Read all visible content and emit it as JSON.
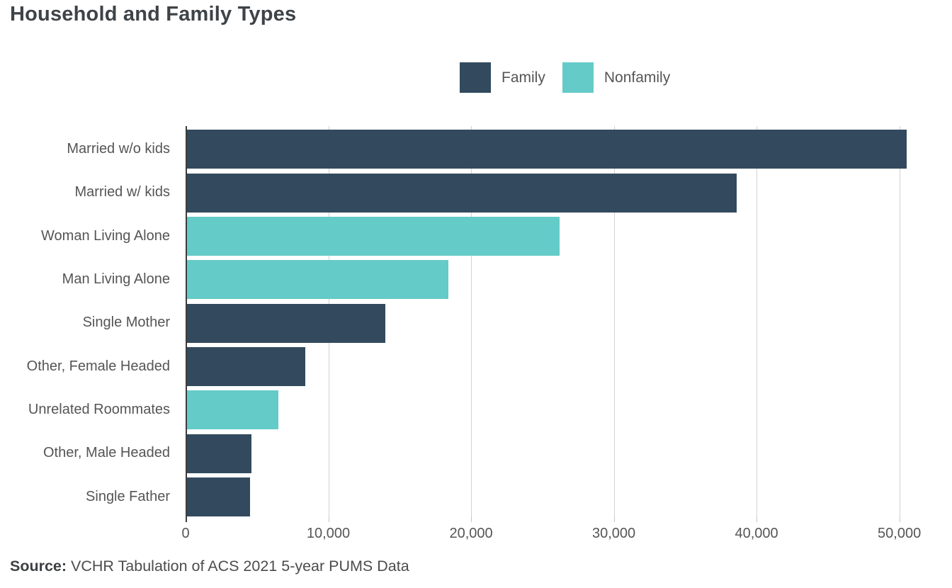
{
  "title": "Household and Family Types",
  "legend": {
    "items": [
      {
        "label": "Family",
        "color": "#334a5e"
      },
      {
        "label": "Nonfamily",
        "color": "#64cbc8"
      }
    ]
  },
  "source": {
    "prefix": "Source:",
    "text": " VCHR Tabulation of ACS 2021 5-year PUMS Data"
  },
  "chart_data": {
    "type": "bar",
    "orientation": "horizontal",
    "title": "Household and Family Types",
    "categories": [
      "Married w/o kids",
      "Married w/ kids",
      "Woman Living Alone",
      "Man Living Alone",
      "Single Mother",
      "Other, Female Headed",
      "Unrelated Roommates",
      "Other, Male Headed",
      "Single Father"
    ],
    "rows": [
      {
        "label": "Married w/o kids",
        "value": 50400,
        "series": "Family"
      },
      {
        "label": "Married w/ kids",
        "value": 38500,
        "series": "Family"
      },
      {
        "label": "Woman Living Alone",
        "value": 26100,
        "series": "Nonfamily"
      },
      {
        "label": "Man Living Alone",
        "value": 18300,
        "series": "Nonfamily"
      },
      {
        "label": "Single Mother",
        "value": 13900,
        "series": "Family"
      },
      {
        "label": "Other, Female Headed",
        "value": 8300,
        "series": "Family"
      },
      {
        "label": "Unrelated Roommates",
        "value": 6400,
        "series": "Nonfamily"
      },
      {
        "label": "Other, Male Headed",
        "value": 4500,
        "series": "Family"
      },
      {
        "label": "Single Father",
        "value": 4400,
        "series": "Family"
      }
    ],
    "series_colors": {
      "Family": "#334a5e",
      "Nonfamily": "#64cbc8"
    },
    "legend_entries": [
      "Family",
      "Nonfamily"
    ],
    "legend_position": "top-right",
    "grid": true,
    "xlabel": "",
    "ylabel": "",
    "xlim": [
      0,
      52500
    ],
    "x_ticks": [
      "0",
      "10,000",
      "20,000",
      "30,000",
      "40,000",
      "50,000"
    ],
    "x_tick_values": [
      0,
      10000,
      20000,
      30000,
      40000,
      50000
    ],
    "source": "Source: VCHR Tabulation of ACS 2021 5-year PUMS Data"
  }
}
